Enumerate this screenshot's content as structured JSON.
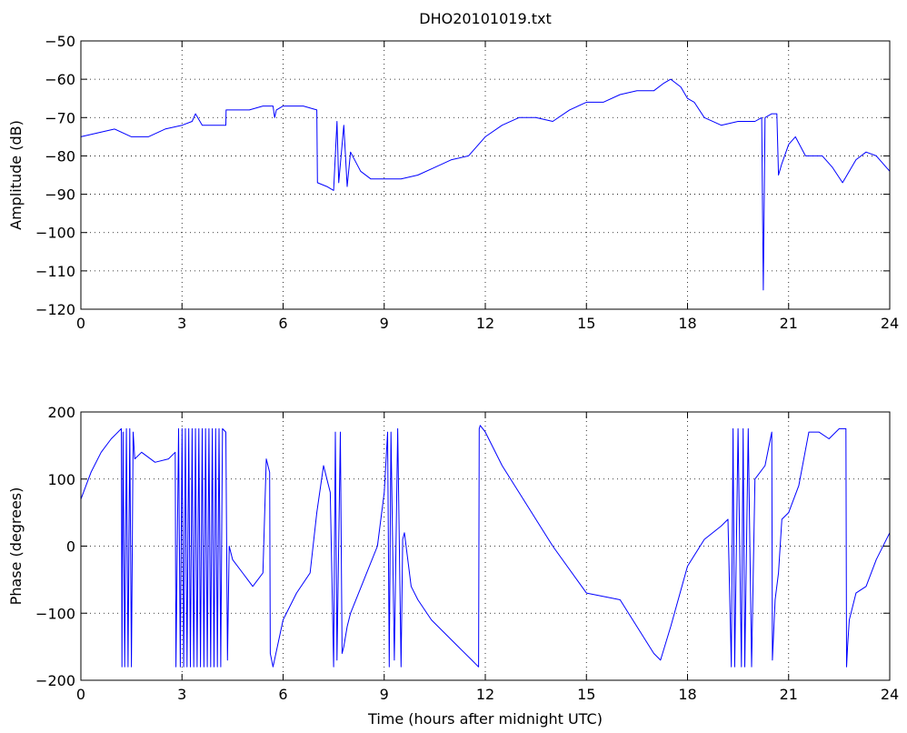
{
  "chart_data": [
    {
      "type": "line",
      "title": "DHO20101019.txt",
      "xlabel": "",
      "ylabel": "Amplitude (dB)",
      "xlim": [
        0,
        24
      ],
      "ylim": [
        -120,
        -50
      ],
      "xticks": [
        "0",
        "3",
        "6",
        "9",
        "12",
        "15",
        "18",
        "21",
        "24"
      ],
      "yticks": [
        "−120",
        "−110",
        "−100",
        "−90",
        "−80",
        "−70",
        "−60",
        "−50"
      ],
      "grid": true,
      "series_color": "#0000ff",
      "series": [
        {
          "name": "",
          "x": [
            0,
            0.5,
            1.0,
            1.5,
            2.0,
            2.5,
            3.0,
            3.3,
            3.4,
            3.6,
            4.0,
            4.3,
            4.31,
            4.6,
            5.0,
            5.4,
            5.7,
            5.75,
            5.8,
            6.0,
            6.2,
            6.6,
            7.0,
            7.02,
            7.3,
            7.5,
            7.6,
            7.65,
            7.8,
            7.9,
            8.0,
            8.3,
            8.6,
            9.0,
            9.5,
            10.0,
            10.5,
            11.0,
            11.5,
            12.0,
            12.5,
            13.0,
            13.5,
            14.0,
            14.5,
            15.0,
            15.5,
            16.0,
            16.5,
            17.0,
            17.3,
            17.5,
            17.8,
            18.0,
            18.2,
            18.5,
            19.0,
            19.5,
            20.0,
            20.2,
            20.25,
            20.3,
            20.5,
            20.65,
            20.7,
            20.8,
            21.0,
            21.2,
            21.5,
            22.0,
            22.3,
            22.6,
            22.8,
            23.0,
            23.3,
            23.6,
            24.0
          ],
          "y": [
            -75,
            -74,
            -73,
            -75,
            -75,
            -73,
            -72,
            -71,
            -69,
            -72,
            -72,
            -72,
            -68,
            -68,
            -68,
            -67,
            -67,
            -70,
            -68,
            -67,
            -67,
            -67,
            -68,
            -87,
            -88,
            -89,
            -71,
            -87,
            -72,
            -88,
            -79,
            -84,
            -86,
            -86,
            -86,
            -85,
            -83,
            -81,
            -80,
            -75,
            -72,
            -70,
            -70,
            -71,
            -68,
            -66,
            -66,
            -64,
            -63,
            -63,
            -61,
            -60,
            -62,
            -65,
            -66,
            -70,
            -72,
            -71,
            -71,
            -70,
            -115,
            -70,
            -69,
            -69,
            -85,
            -82,
            -77,
            -75,
            -80,
            -80,
            -83,
            -87,
            -84,
            -81,
            -79,
            -80,
            -84
          ]
        }
      ]
    },
    {
      "type": "line",
      "title": "",
      "xlabel": "Time (hours after midnight UTC)",
      "ylabel": "Phase (degrees)",
      "xlim": [
        0,
        24
      ],
      "ylim": [
        -200,
        200
      ],
      "xticks": [
        "0",
        "3",
        "6",
        "9",
        "12",
        "15",
        "18",
        "21",
        "24"
      ],
      "yticks": [
        "−200",
        "−100",
        "0",
        "100",
        "200"
      ],
      "grid": true,
      "series_color": "#0000ff",
      "series": [
        {
          "name": "",
          "x": [
            0,
            0.3,
            0.6,
            0.9,
            1.2,
            1.22,
            1.25,
            1.3,
            1.35,
            1.4,
            1.45,
            1.5,
            1.55,
            1.6,
            1.8,
            2.2,
            2.6,
            2.8,
            2.82,
            2.9,
            2.95,
            3.0,
            3.05,
            3.1,
            3.15,
            3.2,
            3.25,
            3.3,
            3.35,
            3.4,
            3.45,
            3.5,
            3.55,
            3.6,
            3.65,
            3.7,
            3.75,
            3.8,
            3.85,
            3.9,
            3.95,
            4.0,
            4.05,
            4.1,
            4.15,
            4.2,
            4.3,
            4.35,
            4.4,
            4.5,
            4.8,
            5.1,
            5.4,
            5.5,
            5.6,
            5.62,
            5.7,
            6.0,
            6.4,
            6.8,
            7.0,
            7.2,
            7.4,
            7.5,
            7.55,
            7.6,
            7.7,
            7.75,
            7.8,
            7.9,
            8.0,
            8.4,
            8.8,
            9.0,
            9.1,
            9.15,
            9.2,
            9.3,
            9.4,
            9.5,
            9.55,
            9.6,
            9.7,
            9.8,
            10.0,
            10.4,
            10.8,
            11.2,
            11.6,
            11.8,
            11.82,
            11.85,
            12.0,
            12.5,
            13.0,
            14.0,
            15.0,
            16.0,
            17.0,
            17.2,
            17.5,
            18.0,
            18.5,
            19.0,
            19.2,
            19.3,
            19.35,
            19.4,
            19.5,
            19.6,
            19.65,
            19.7,
            19.8,
            19.9,
            20.0,
            20.3,
            20.5,
            20.52,
            20.6,
            20.7,
            20.8,
            21.0,
            21.3,
            21.6,
            21.9,
            22.2,
            22.5,
            22.7,
            22.72,
            22.75,
            22.8,
            23.0,
            23.3,
            23.6,
            24.0
          ],
          "y": [
            70,
            110,
            140,
            160,
            175,
            -180,
            170,
            -180,
            175,
            -180,
            175,
            -180,
            170,
            130,
            140,
            125,
            130,
            140,
            -180,
            175,
            -180,
            175,
            -180,
            175,
            -180,
            175,
            -180,
            175,
            -180,
            175,
            -180,
            175,
            -180,
            175,
            -180,
            175,
            -180,
            175,
            -180,
            175,
            -180,
            175,
            -180,
            175,
            -180,
            175,
            170,
            -170,
            0,
            -20,
            -40,
            -60,
            -40,
            130,
            110,
            -160,
            -180,
            -110,
            -70,
            -40,
            50,
            120,
            80,
            -180,
            170,
            -170,
            170,
            -160,
            -150,
            -120,
            -100,
            -50,
            0,
            80,
            170,
            -180,
            170,
            -170,
            175,
            -180,
            10,
            20,
            -20,
            -60,
            -80,
            -110,
            -130,
            -150,
            -170,
            -180,
            175,
            180,
            170,
            120,
            80,
            0,
            -70,
            -80,
            -160,
            -170,
            -120,
            -30,
            10,
            30,
            40,
            -180,
            175,
            -180,
            175,
            -180,
            175,
            -180,
            175,
            -180,
            100,
            120,
            170,
            -170,
            -80,
            -40,
            40,
            50,
            90,
            170,
            170,
            160,
            175,
            175,
            -180,
            -150,
            -110,
            -70,
            -60,
            -20,
            20
          ]
        }
      ]
    }
  ]
}
